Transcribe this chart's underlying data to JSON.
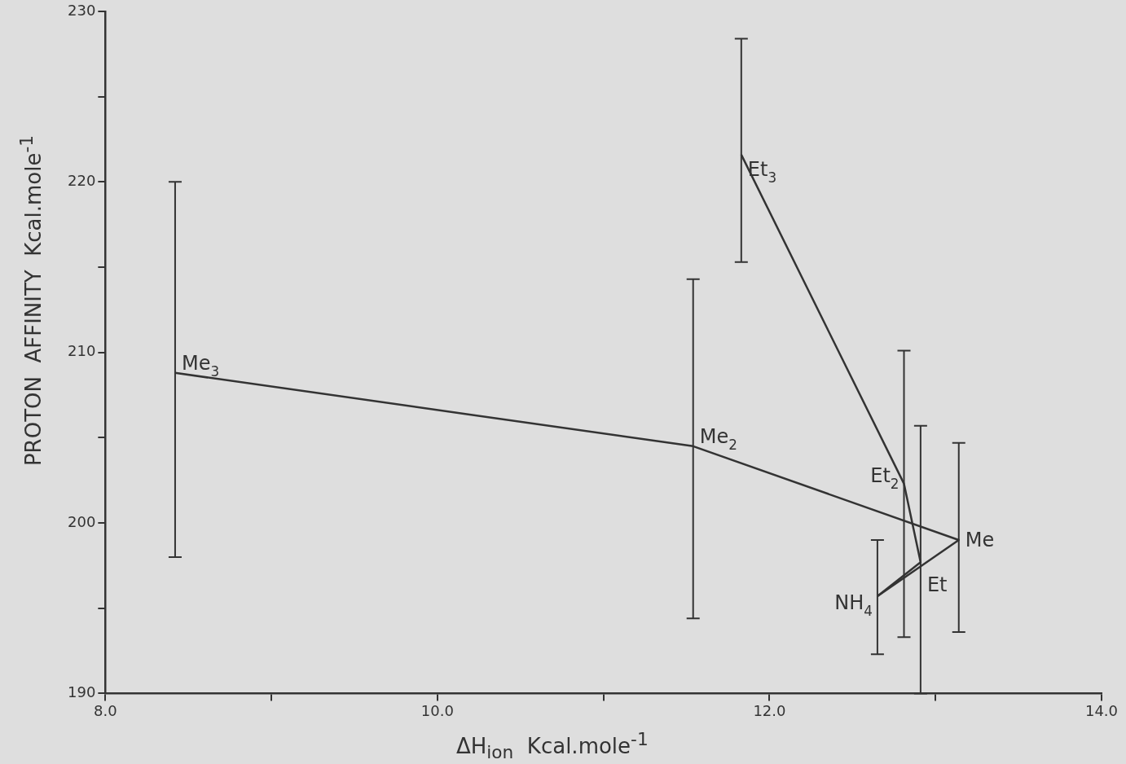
{
  "chart_data": {
    "type": "line",
    "xlabel": "ΔH$_{ion}$  Kcal.mole$^{-1}$",
    "ylabel": "PROTON  AFFINITY  Kcal.mole$^{-1}$",
    "series": [
      {
        "color": "#333333",
        "x": [
          8.42,
          11.54,
          13.14,
          12.65
        ],
        "values": [
          208.8,
          204.5,
          199.0,
          195.7
        ],
        "errors": [
          [
            198.0,
            220.0
          ],
          [
            194.4,
            214.3
          ],
          [
            193.6,
            204.7
          ],
          [
            192.3,
            199.0
          ]
        ]
      },
      {
        "color": "#333333",
        "x": [
          11.83,
          12.81,
          12.91,
          12.65
        ],
        "values": [
          221.6,
          202.3,
          197.7,
          195.7
        ],
        "errors": [
          [
            215.3,
            228.4
          ],
          [
            193.3,
            210.1
          ],
          [
            190.0,
            205.7
          ],
          null
        ]
      }
    ],
    "xlim": [
      8,
      14
    ],
    "xticks": [
      {
        "value": 8,
        "label": "8.0"
      },
      {
        "value": 9,
        "label": null
      },
      {
        "value": 10,
        "label": "10.0"
      },
      {
        "value": 11,
        "label": null
      },
      {
        "value": 12,
        "label": "12.0"
      },
      {
        "value": 13,
        "label": null
      },
      {
        "value": 14,
        "label": "14.0"
      }
    ],
    "ylim": [
      190,
      230
    ],
    "yticks": [
      190,
      {
        "value": 195,
        "label": null
      },
      200,
      {
        "value": 205,
        "label": null
      },
      210,
      {
        "value": 215,
        "label": null
      },
      220,
      {
        "value": 225,
        "label": null
      },
      230
    ],
    "grid": false,
    "legend": false,
    "marker": "none",
    "line_style": "solid",
    "annotations": [
      {
        "text": "Me$_{3}$",
        "x": 8.42,
        "y": 208.8
      },
      {
        "text": "Me$_{2}$",
        "x": 11.54,
        "y": 204.5
      },
      {
        "text": "Me",
        "x": 13.14,
        "y": 199.0
      },
      {
        "text": "NH$_{4}$",
        "x": 12.65,
        "y": 195.7
      },
      {
        "text": "Et$_{3}$",
        "x": 11.83,
        "y": 221.6
      },
      {
        "text": "Et$_{2}$",
        "x": 12.81,
        "y": 202.3
      },
      {
        "text": "Et",
        "x": 12.91,
        "y": 197.7
      }
    ]
  }
}
